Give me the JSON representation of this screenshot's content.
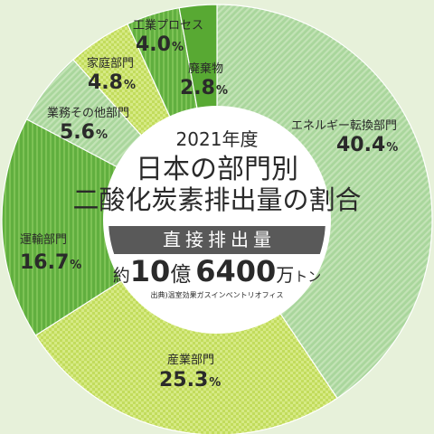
{
  "chart_data": {
    "type": "pie",
    "donut": true,
    "period": "2021年度",
    "title": [
      "日本の部門別",
      "二酸化炭素排出量の割合"
    ],
    "categories": [
      "エネルギー転換部門",
      "産業部門",
      "運輸部門",
      "業務その他部門",
      "家庭部門",
      "工業プロセス",
      "廃棄物"
    ],
    "values": [
      40.4,
      25.3,
      16.7,
      5.6,
      4.8,
      4.0,
      2.8
    ],
    "value_labels": [
      "40.4",
      "25.3",
      "16.7",
      "5.6",
      "4.8",
      "4.0",
      "2.8"
    ],
    "unit": "%",
    "fills": [
      {
        "pattern": "diagonal-stripes",
        "base": "#a9d69c",
        "accent": "#c3e3b6"
      },
      {
        "pattern": "checker",
        "base": "#c2dc5c",
        "accent": "#d6ea85"
      },
      {
        "pattern": "vertical-stripes",
        "base": "#61af3f",
        "accent": "#7dc255"
      },
      {
        "pattern": "diagonal-stripes",
        "base": "#a9d69c",
        "accent": "#c3e3b6"
      },
      {
        "pattern": "checker",
        "base": "#c2dc5c",
        "accent": "#d6ea85"
      },
      {
        "pattern": "vertical-stripes",
        "base": "#61af3f",
        "accent": "#7dc255"
      },
      {
        "pattern": "solid",
        "base": "#58a933"
      }
    ]
  },
  "center": {
    "band_label": "直接排出量",
    "total": {
      "prefix": "約",
      "num1": "10",
      "unit1": "億",
      "num2": "6400",
      "unit2": "万",
      "unit3": "トン"
    },
    "source": "出典)温室効果ガスインベントリオフィス"
  },
  "colors": {
    "background": "#e7f1da",
    "center_fill": "#ffffff",
    "band": "#595959",
    "band_text": "#ffffff",
    "text": "#2a2a2a",
    "separator": "#ffffff"
  }
}
